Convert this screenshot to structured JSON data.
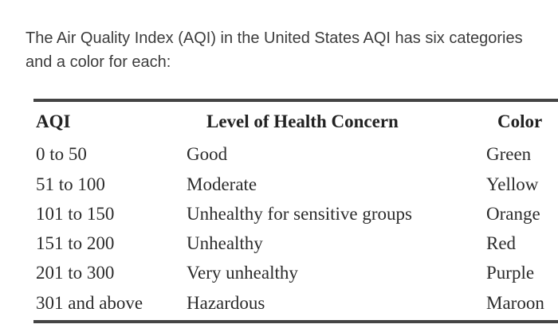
{
  "intro": {
    "text": "The Air Quality Index (AQI) in the United States AQI has six categories and a color for each:"
  },
  "table": {
    "headers": {
      "aqi": "AQI",
      "level": "Level of Health Concern",
      "color": "Color"
    },
    "rows": [
      {
        "aqi": "0 to 50",
        "level": "Good",
        "color": "Green"
      },
      {
        "aqi": "51 to 100",
        "level": "Moderate",
        "color": "Yellow"
      },
      {
        "aqi": "101 to 150",
        "level": "Unhealthy for sensitive groups",
        "color": "Orange"
      },
      {
        "aqi": "151 to 200",
        "level": "Unhealthy",
        "color": "Red"
      },
      {
        "aqi": "201 to 300",
        "level": "Very unhealthy",
        "color": "Purple"
      },
      {
        "aqi": "301 and above",
        "level": "Hazardous",
        "color": "Maroon"
      }
    ]
  }
}
